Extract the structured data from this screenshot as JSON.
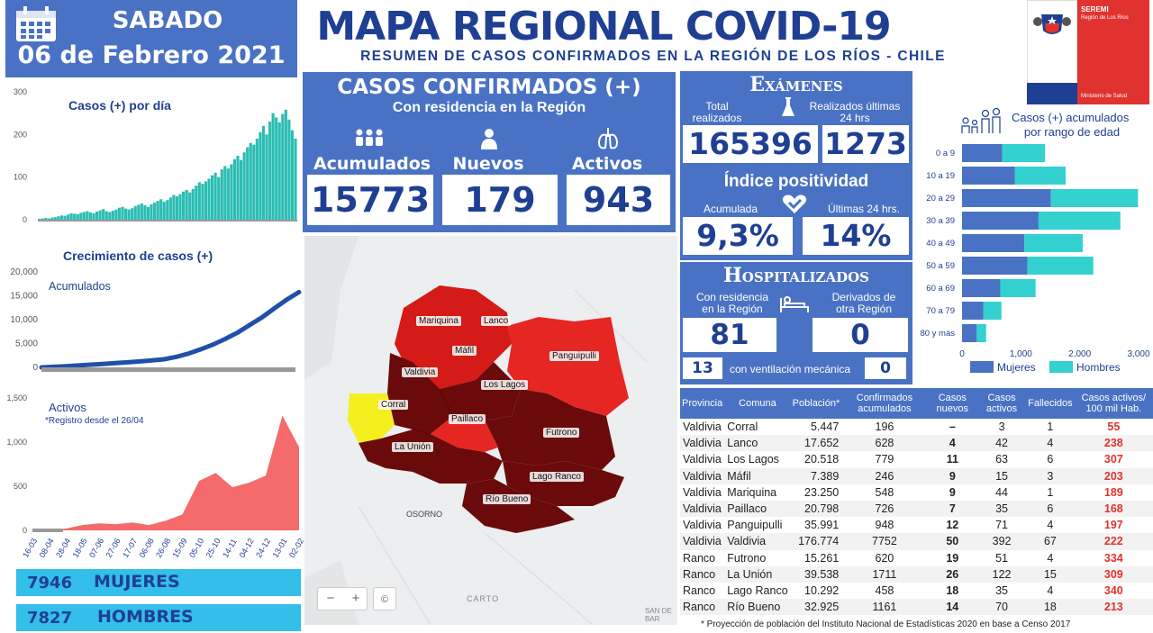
{
  "date": {
    "day": "SABADO",
    "full": "06 de Febrero 2021"
  },
  "title": "MAPA REGIONAL COVID-19",
  "subtitle": "RESUMEN DE CASOS CONFIRMADOS EN LA REGIÓN DE LOS RÍOS - CHILE",
  "logo": {
    "line1": "SEREMI",
    "line2": "Región de Los Ríos",
    "line3": "Ministerio de Salud"
  },
  "confirmed": {
    "title": "CASOS CONFIRMADOS (+)",
    "subtitle": "Con residencia en la Región",
    "acumulados_label": "Acumulados",
    "acumulados_value": "15773",
    "nuevos_label": "Nuevos",
    "nuevos_value": "179",
    "activos_label": "Activos",
    "activos_value": "943"
  },
  "exams": {
    "title": "Exámenes",
    "total_label_1": "Total",
    "total_label_2": "realizados",
    "last_label_1": "Realizados últimas",
    "last_label_2": "24 hrs",
    "total_value": "165396",
    "last_value": "1273",
    "pos_title": "Índice positividad",
    "acum_label": "Acumulada",
    "acum_value": "9,3%",
    "last24_label": "Últimas 24 hrs.",
    "last24_value": "14%"
  },
  "hosp": {
    "title": "Hospitalizados",
    "res_label_1": "Con residencia",
    "res_label_2": "en la Región",
    "res_value": "81",
    "der_label_1": "Derivados de",
    "der_label_2": "otra Región",
    "der_value": "0",
    "vent_value": "13",
    "vent_label": "con ventilación mecánica",
    "vent_der_value": "0"
  },
  "chart_data": [
    {
      "type": "bar",
      "title": "Casos (+) por día",
      "ylim": [
        0,
        300
      ],
      "yticks": [
        "300",
        "200",
        "100",
        "0"
      ],
      "series": [
        {
          "values": [
            2,
            3,
            4,
            3,
            5,
            6,
            8,
            10,
            9,
            12,
            15,
            14,
            13,
            16,
            18,
            20,
            17,
            15,
            19,
            22,
            25,
            20,
            18,
            21,
            24,
            28,
            30,
            26,
            24,
            27,
            32,
            35,
            38,
            34,
            30,
            36,
            40,
            44,
            48,
            42,
            46,
            52,
            58,
            55,
            60,
            66,
            70,
            64,
            72,
            80,
            88,
            84,
            90,
            96,
            104,
            110,
            100,
            118,
            126,
            120,
            130,
            142,
            150,
            140,
            158,
            170,
            180,
            176,
            190,
            205,
            220,
            200,
            230,
            250,
            240,
            228,
            248,
            258,
            235,
            210,
            190
          ]
        }
      ]
    },
    {
      "type": "line",
      "title": "Crecimiento de casos (+)",
      "series": [
        {
          "name": "Acumulados",
          "values": [
            0,
            120,
            250,
            400,
            560,
            720,
            890,
            1050,
            1250,
            1460,
            1700,
            2200,
            2900,
            3800,
            4800,
            6000,
            7300,
            8900,
            10500,
            12400,
            14200,
            15773
          ]
        }
      ],
      "ylim": [
        0,
        20000
      ],
      "yticks": [
        "20,000",
        "15,000",
        "10,000",
        "5,000",
        "0"
      ]
    },
    {
      "type": "area",
      "title": "Activos",
      "note": "*Registro desde el 26/04",
      "ylim": [
        0,
        1500
      ],
      "yticks": [
        "1,500",
        "1,000",
        "500",
        "0"
      ],
      "categories": [
        "16-03",
        "08-04",
        "28-04",
        "18-05",
        "07-06",
        "27-06",
        "17-07",
        "06-08",
        "26-08",
        "15-09",
        "05-10",
        "25-10",
        "14-11",
        "04-12",
        "24-12",
        "13-01",
        "02-02"
      ],
      "series": [
        {
          "values": [
            0,
            0,
            20,
            60,
            80,
            70,
            90,
            60,
            110,
            180,
            560,
            650,
            490,
            540,
            620,
            1300,
            943
          ]
        }
      ]
    },
    {
      "type": "bar",
      "title": "Casos (+) acumulados por rango de edad",
      "orientation": "horizontal",
      "stacked": true,
      "categories": [
        "0 a 9",
        "10 a 19",
        "20 a 29",
        "30 a 39",
        "40 a 49",
        "50 a 59",
        "60 a 69",
        "70 a 79",
        "80 y más"
      ],
      "xlim": [
        0,
        3000
      ],
      "xticks": [
        "0",
        "1,000",
        "2,000",
        "3,000"
      ],
      "series": [
        {
          "name": "Mujeres",
          "values": [
            680,
            900,
            1510,
            1300,
            1060,
            1110,
            650,
            360,
            250
          ]
        },
        {
          "name": "Hombres",
          "values": [
            730,
            860,
            1480,
            1390,
            990,
            1120,
            600,
            310,
            160
          ]
        }
      ]
    }
  ],
  "gender": {
    "mujeres_value": "7946",
    "mujeres_label": "MUJERES",
    "hombres_value": "7827",
    "hombres_label": "HOMBRES"
  },
  "map": {
    "labels": [
      "Mariquina",
      "Lanco",
      "Máfil",
      "Panguipulli",
      "Valdivia",
      "Los Lagos",
      "Corral",
      "Paillaco",
      "Futrono",
      "La Unión",
      "Lago Ranco",
      "Río Bueno",
      "OSORNO"
    ],
    "attribution": "CARTO",
    "corner_label": "SAN DE BAR",
    "zoom_out": "−",
    "zoom_in": "+",
    "info": "©"
  },
  "table": {
    "headers": [
      "Provincia",
      "Comuna",
      "Población*",
      "Confirmados acumulados",
      "Casos nuevos",
      "Casos activos",
      "Fallecidos",
      "Casos activos/ 100 mil Hab."
    ],
    "rows": [
      [
        "Valdivia",
        "Corral",
        "5.447",
        "196",
        "–",
        "3",
        "1",
        "55"
      ],
      [
        "Valdivia",
        "Lanco",
        "17.652",
        "628",
        "4",
        "42",
        "4",
        "238"
      ],
      [
        "Valdivia",
        "Los Lagos",
        "20.518",
        "779",
        "11",
        "63",
        "6",
        "307"
      ],
      [
        "Valdivia",
        "Máfil",
        "7.389",
        "246",
        "9",
        "15",
        "3",
        "203"
      ],
      [
        "Valdivia",
        "Mariquina",
        "23.250",
        "548",
        "9",
        "44",
        "1",
        "189"
      ],
      [
        "Valdivia",
        "Paillaco",
        "20.798",
        "726",
        "7",
        "35",
        "6",
        "168"
      ],
      [
        "Valdivia",
        "Panguipulli",
        "35.991",
        "948",
        "12",
        "71",
        "4",
        "197"
      ],
      [
        "Valdivia",
        "Valdivia",
        "176.774",
        "7752",
        "50",
        "392",
        "67",
        "222"
      ],
      [
        "Ranco",
        "Futrono",
        "15.261",
        "620",
        "19",
        "51",
        "4",
        "334"
      ],
      [
        "Ranco",
        "La Unión",
        "39.538",
        "1711",
        "26",
        "122",
        "15",
        "309"
      ],
      [
        "Ranco",
        "Lago Ranco",
        "10.292",
        "458",
        "18",
        "35",
        "4",
        "340"
      ],
      [
        "Ranco",
        "Río Bueno",
        "32.925",
        "1161",
        "14",
        "70",
        "18",
        "213"
      ]
    ],
    "footnote": "* Proyección de población del Instituto Nacional de Estadísticas 2020 en base a Censo 2017"
  },
  "colors": {
    "blue": "#4a72c4",
    "navy": "#1f3f93",
    "teal": "#2bbdb3",
    "cyan": "#33bfe9",
    "red": "#e0332f",
    "maroon": "#6b0a0a"
  }
}
